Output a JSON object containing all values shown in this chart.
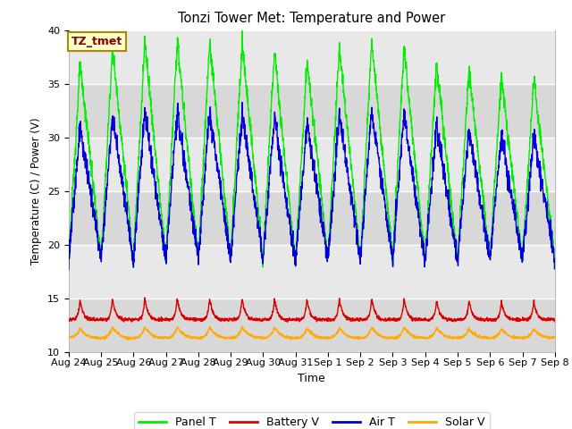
{
  "title": "Tonzi Tower Met: Temperature and Power",
  "xlabel": "Time",
  "ylabel": "Temperature (C) / Power (V)",
  "ylim": [
    10,
    40
  ],
  "annotation": "TZ_tmet",
  "bg_color": "#ebebeb",
  "fig_bg": "#ffffff",
  "colors": {
    "Panel T": "#00ee00",
    "Battery V": "#dd0000",
    "Air T": "#0000dd",
    "Solar V": "#ffaa00"
  },
  "xtick_labels": [
    "Aug 24",
    "Aug 25",
    "Aug 26",
    "Aug 27",
    "Aug 28",
    "Aug 29",
    "Aug 30",
    "Aug 31",
    "Sep 1",
    "Sep 2",
    "Sep 3",
    "Sep 4",
    "Sep 5",
    "Sep 6",
    "Sep 7",
    "Sep 8"
  ],
  "n_days": 15,
  "samples_per_day": 144
}
